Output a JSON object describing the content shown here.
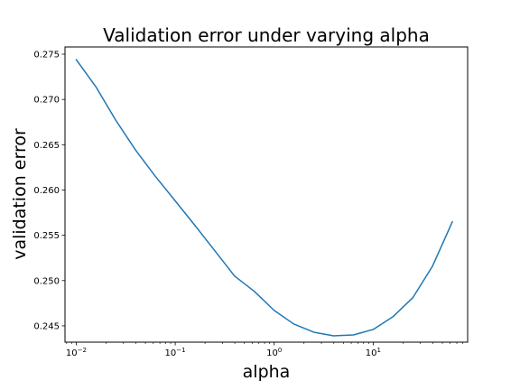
{
  "chart_data": {
    "type": "line",
    "title": "Validation error under varying alpha",
    "xlabel": "alpha",
    "ylabel": "validation error",
    "xscale": "log",
    "xlim": [
      0.0077,
      90
    ],
    "ylim": [
      0.2432,
      0.2758
    ],
    "xticks": [
      {
        "value": 0.01,
        "base": "10",
        "exp": "−2"
      },
      {
        "value": 0.1,
        "base": "10",
        "exp": "−1"
      },
      {
        "value": 1,
        "base": "10",
        "exp": "0"
      },
      {
        "value": 10,
        "base": "10",
        "exp": "1"
      }
    ],
    "yticks": [
      {
        "value": 0.245,
        "label": "0.245"
      },
      {
        "value": 0.25,
        "label": "0.250"
      },
      {
        "value": 0.255,
        "label": "0.255"
      },
      {
        "value": 0.26,
        "label": "0.260"
      },
      {
        "value": 0.265,
        "label": "0.265"
      },
      {
        "value": 0.27,
        "label": "0.270"
      },
      {
        "value": 0.275,
        "label": "0.275"
      }
    ],
    "grid": false,
    "legend": "none",
    "color": "#1f77b4",
    "series": [
      {
        "x": [
          0.01,
          0.0158,
          0.0251,
          0.0398,
          0.0631,
          0.1,
          0.158,
          0.251,
          0.398,
          0.631,
          1.0,
          1.58,
          2.51,
          3.98,
          6.31,
          10.0,
          15.8,
          25.1,
          39.8,
          63.1
        ],
        "y": [
          0.2744,
          0.2714,
          0.2677,
          0.2644,
          0.2615,
          0.2588,
          0.2561,
          0.2533,
          0.2505,
          0.2488,
          0.2467,
          0.2452,
          0.2443,
          0.2439,
          0.244,
          0.2446,
          0.246,
          0.2481,
          0.2516,
          0.2565
        ]
      }
    ]
  }
}
